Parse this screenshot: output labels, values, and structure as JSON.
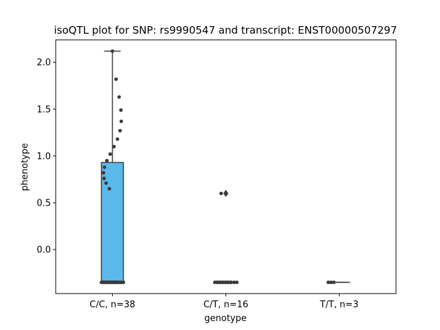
{
  "chart_data": {
    "type": "box",
    "title": "isoQTL plot for SNP: rs9990547 and transcript: ENST00000507297",
    "xlabel": "genotype",
    "ylabel": "phenotype",
    "ylim": [
      -0.47,
      2.24
    ],
    "yticks": [
      0.0,
      0.5,
      1.0,
      1.5,
      2.0
    ],
    "ytick_labels": [
      "0.0",
      "0.5",
      "1.0",
      "1.5",
      "2.0"
    ],
    "categories": [
      "C/C, n=38",
      "C/T, n=16",
      "T/T, n=3"
    ],
    "box_color": "#5bb8eb",
    "line_color": "#3f3f3f",
    "boxes": [
      {
        "category": "C/C, n=38",
        "min": -0.35,
        "q1": -0.35,
        "median": -0.35,
        "q3": 0.93,
        "max": 2.12,
        "outliers": []
      },
      {
        "category": "C/T, n=16",
        "min": -0.35,
        "q1": -0.35,
        "median": -0.35,
        "q3": -0.35,
        "max": -0.35,
        "outliers": [
          0.6
        ]
      },
      {
        "category": "T/T, n=3",
        "min": -0.35,
        "q1": -0.35,
        "median": -0.35,
        "q3": -0.35,
        "max": -0.35,
        "outliers": []
      }
    ],
    "points": [
      {
        "category": "C/C, n=38",
        "values": [
          2.12,
          1.82,
          1.63,
          1.49,
          1.37,
          1.27,
          1.18,
          1.1,
          1.02,
          0.95,
          0.88,
          0.82,
          0.76,
          0.71,
          0.65,
          -0.35,
          -0.35,
          -0.35,
          -0.35,
          -0.35,
          -0.35,
          -0.35,
          -0.35,
          -0.35,
          -0.35,
          -0.35,
          -0.35,
          -0.35,
          -0.35,
          -0.35,
          -0.35,
          -0.35,
          -0.35,
          -0.35,
          -0.35,
          -0.35,
          -0.35,
          -0.35
        ]
      },
      {
        "category": "C/T, n=16",
        "values": [
          0.6,
          -0.35,
          -0.35,
          -0.35,
          -0.35,
          -0.35,
          -0.35,
          -0.35,
          -0.35,
          -0.35,
          -0.35,
          -0.35,
          -0.35,
          -0.35,
          -0.35,
          -0.35
        ]
      },
      {
        "category": "T/T, n=3",
        "values": [
          -0.35,
          -0.35,
          -0.35
        ]
      }
    ],
    "grid": false,
    "legend": "none"
  }
}
